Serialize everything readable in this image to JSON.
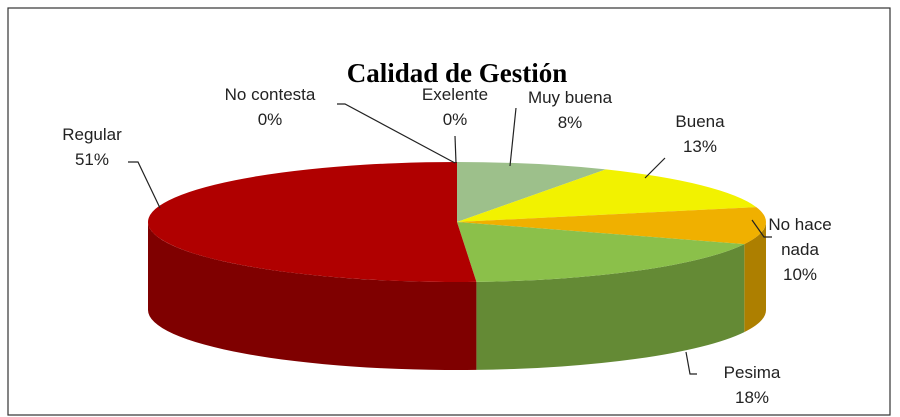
{
  "chart_data": {
    "type": "pie",
    "title": "Calidad de Gestión",
    "categories": [
      "Exelente",
      "Muy buena",
      "Buena",
      "No hace nada",
      "Pesima",
      "Regular",
      "No contesta"
    ],
    "values": [
      0,
      8,
      13,
      10,
      18,
      51,
      0
    ],
    "value_labels": [
      "0%",
      "8%",
      "13%",
      "10%",
      "18%",
      "51%",
      "0%"
    ],
    "colors": [
      "#4f81bd",
      "#9dc08b",
      "#f2f200",
      "#f0b000",
      "#8bc04a",
      "#b00000",
      "#7f7f7f"
    ]
  }
}
